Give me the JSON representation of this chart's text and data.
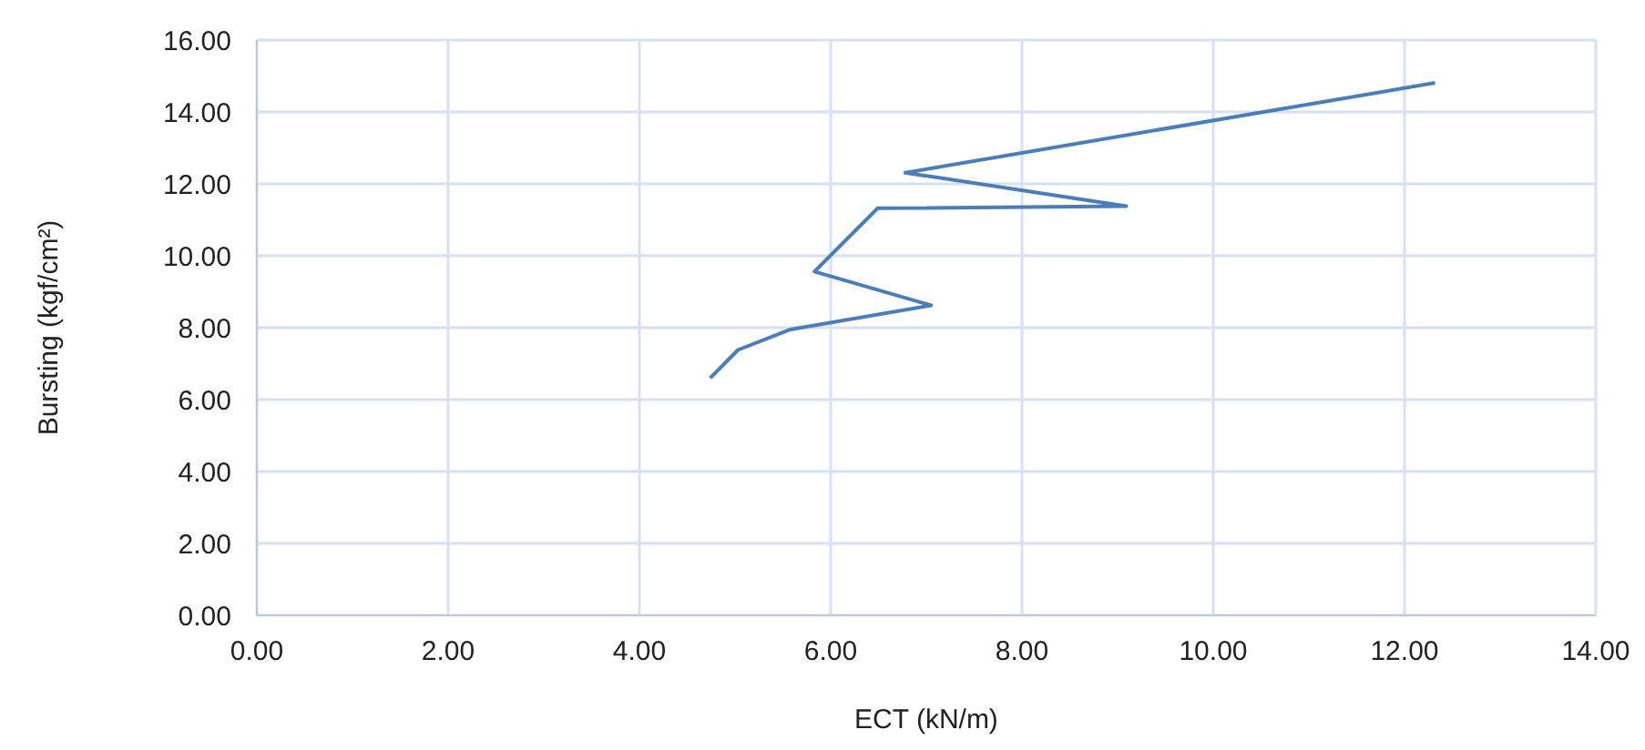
{
  "chart_data": {
    "type": "line",
    "xlabel": "ECT (kN/m)",
    "ylabel": "Bursting (kgf/cm²)",
    "x": [
      4.74,
      5.03,
      5.58,
      7.05,
      5.83,
      6.49,
      9.09,
      6.78,
      12.32
    ],
    "series": [
      {
        "color": "#4a7ebb",
        "values": [
          6.6,
          7.38,
          7.95,
          8.62,
          9.56,
          11.32,
          11.38,
          12.31,
          14.81
        ]
      }
    ],
    "xlim": [
      0,
      14
    ],
    "xticks": [
      {
        "value": 0,
        "label": "0.00"
      },
      {
        "value": 2,
        "label": "2.00"
      },
      {
        "value": 4,
        "label": "4.00"
      },
      {
        "value": 6,
        "label": "6.00"
      },
      {
        "value": 8,
        "label": "8.00"
      },
      {
        "value": 10,
        "label": "10.00"
      },
      {
        "value": 12,
        "label": "12.00"
      },
      {
        "value": 14,
        "label": "14.00"
      }
    ],
    "ylim": [
      0,
      16
    ],
    "yticks": [
      {
        "value": 0,
        "label": "0.00"
      },
      {
        "value": 2,
        "label": "2.00"
      },
      {
        "value": 4,
        "label": "4.00"
      },
      {
        "value": 6,
        "label": "6.00"
      },
      {
        "value": 8,
        "label": "8.00"
      },
      {
        "value": 10,
        "label": "10.00"
      },
      {
        "value": 12,
        "label": "12.00"
      },
      {
        "value": 14,
        "label": "14.00"
      },
      {
        "value": 16,
        "label": "16.00"
      }
    ],
    "grid": true,
    "marker": "none",
    "line_style": "solid"
  }
}
